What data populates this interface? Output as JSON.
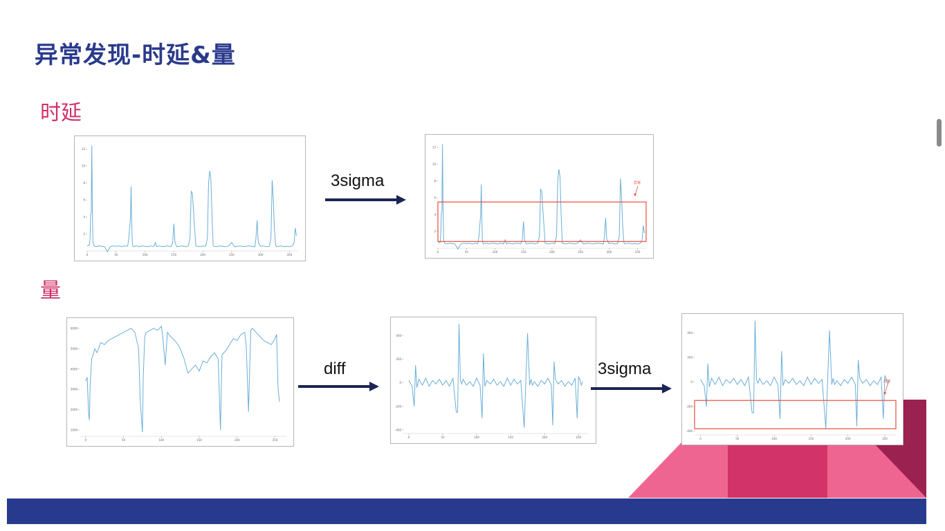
{
  "title": "异常发现-时延&量",
  "sections": {
    "latency": "时延",
    "volume": "量"
  },
  "arrows": {
    "a1": "3sigma",
    "a2": "diff",
    "a3": "3sigma"
  },
  "annotations": {
    "anomaly": "异常"
  },
  "colors": {
    "series": "#6aaed6",
    "box": "#e84c3d",
    "arrow": "#1c2553",
    "title": "#2a3a8c",
    "section": "#d0306a"
  },
  "chart_data": [
    {
      "id": "latency_raw",
      "type": "line",
      "xlim": [
        0,
        365
      ],
      "ylim": [
        0,
        13
      ],
      "xticks": [
        0,
        50,
        100,
        150,
        200,
        250,
        300,
        350
      ],
      "yticks": [
        2,
        4,
        6,
        8,
        10,
        12
      ],
      "x": [
        0,
        4,
        5,
        6,
        7,
        8,
        9,
        10,
        12,
        15,
        20,
        25,
        30,
        35,
        40,
        45,
        50,
        55,
        60,
        65,
        70,
        72,
        75,
        76,
        77,
        78,
        79,
        80,
        82,
        85,
        90,
        95,
        100,
        105,
        110,
        115,
        118,
        120,
        122,
        125,
        130,
        135,
        140,
        145,
        148,
        150,
        152,
        155,
        160,
        165,
        170,
        175,
        178,
        180,
        182,
        185,
        188,
        190,
        195,
        200,
        205,
        208,
        210,
        212,
        214,
        216,
        218,
        220,
        225,
        230,
        235,
        240,
        245,
        250,
        255,
        260,
        265,
        270,
        275,
        280,
        285,
        290,
        292,
        294,
        296,
        300,
        305,
        310,
        315,
        318,
        320,
        322,
        324,
        326,
        328,
        330,
        335,
        340,
        345,
        350,
        355,
        358,
        360,
        362
      ],
      "y": [
        0.6,
        0.7,
        1.5,
        4.2,
        4.5,
        12.4,
        5.0,
        1.0,
        0.6,
        0.5,
        0.6,
        0.55,
        0.5,
        -0.1,
        0.5,
        0.6,
        0.55,
        0.6,
        0.5,
        0.6,
        0.55,
        1.5,
        4.0,
        7.6,
        3.5,
        1.0,
        0.6,
        0.5,
        0.55,
        0.6,
        0.5,
        0.6,
        0.55,
        0.5,
        0.6,
        0.5,
        1.0,
        0.5,
        0.55,
        0.6,
        0.5,
        0.55,
        0.6,
        0.5,
        1.0,
        3.2,
        1.0,
        0.5,
        0.55,
        0.6,
        0.5,
        0.6,
        1.5,
        7.0,
        6.8,
        3.5,
        0.6,
        0.55,
        0.5,
        0.6,
        0.55,
        1.5,
        8.0,
        9.4,
        8.5,
        4.0,
        0.6,
        0.55,
        0.5,
        0.6,
        0.55,
        0.5,
        0.6,
        1.0,
        0.5,
        0.55,
        0.6,
        0.5,
        0.55,
        0.6,
        0.55,
        0.5,
        1.5,
        3.6,
        1.0,
        0.55,
        0.6,
        0.5,
        0.55,
        1.5,
        8.3,
        6.0,
        2.5,
        0.7,
        0.5,
        0.55,
        0.6,
        0.5,
        0.55,
        0.5,
        0.6,
        1.0,
        2.7,
        1.8
      ]
    },
    {
      "id": "latency_sigma",
      "type": "line",
      "xlim": [
        0,
        365
      ],
      "ylim": [
        0,
        13
      ],
      "xticks": [
        0,
        50,
        100,
        150,
        200,
        250,
        300,
        350
      ],
      "yticks": [
        2,
        4,
        6,
        8,
        10,
        12
      ],
      "threshold_box": {
        "x0": 0,
        "x1": 365,
        "y0": 0.8,
        "y1": 5.5
      },
      "x": [
        0,
        4,
        5,
        6,
        7,
        8,
        9,
        10,
        12,
        15,
        20,
        25,
        30,
        35,
        40,
        45,
        50,
        55,
        60,
        65,
        70,
        72,
        75,
        76,
        77,
        78,
        79,
        80,
        82,
        85,
        90,
        95,
        100,
        105,
        110,
        115,
        118,
        120,
        122,
        125,
        130,
        135,
        140,
        145,
        148,
        150,
        152,
        155,
        160,
        165,
        170,
        175,
        178,
        180,
        182,
        185,
        188,
        190,
        195,
        200,
        205,
        208,
        210,
        212,
        214,
        216,
        218,
        220,
        225,
        230,
        235,
        240,
        245,
        250,
        255,
        260,
        265,
        270,
        275,
        280,
        285,
        290,
        292,
        294,
        296,
        300,
        305,
        310,
        315,
        318,
        320,
        322,
        324,
        326,
        328,
        330,
        335,
        340,
        345,
        350,
        355,
        358,
        360,
        362
      ],
      "y": [
        0.6,
        0.7,
        1.5,
        4.2,
        4.5,
        12.4,
        5.0,
        1.0,
        0.6,
        0.5,
        0.6,
        0.55,
        0.5,
        -0.1,
        0.5,
        0.6,
        0.55,
        0.6,
        0.5,
        0.6,
        0.55,
        1.5,
        4.0,
        7.6,
        3.5,
        1.0,
        0.6,
        0.5,
        0.55,
        0.6,
        0.5,
        0.6,
        0.55,
        0.5,
        0.6,
        0.5,
        1.0,
        0.5,
        0.55,
        0.6,
        0.5,
        0.55,
        0.6,
        0.5,
        1.0,
        3.2,
        1.0,
        0.5,
        0.55,
        0.6,
        0.5,
        0.6,
        1.5,
        7.0,
        6.8,
        3.5,
        0.6,
        0.55,
        0.5,
        0.6,
        0.55,
        1.5,
        8.0,
        9.4,
        8.5,
        4.0,
        0.6,
        0.55,
        0.5,
        0.6,
        0.55,
        0.5,
        0.6,
        1.0,
        0.5,
        0.55,
        0.6,
        0.5,
        0.55,
        0.6,
        0.55,
        0.5,
        1.5,
        3.6,
        1.0,
        0.55,
        0.6,
        0.5,
        0.55,
        1.5,
        8.3,
        6.0,
        2.5,
        0.7,
        0.5,
        0.55,
        0.6,
        0.5,
        0.55,
        0.5,
        0.6,
        1.0,
        2.7,
        1.8
      ]
    },
    {
      "id": "volume_raw",
      "type": "line",
      "xlim": [
        -8,
        265
      ],
      "ylim": [
        700,
        6300
      ],
      "xticks": [
        0,
        50,
        100,
        150,
        200,
        250
      ],
      "yticks": [
        1000,
        2000,
        3000,
        4000,
        5000,
        6000
      ],
      "x": [
        0,
        2,
        4,
        5,
        6,
        8,
        10,
        12,
        15,
        18,
        20,
        25,
        30,
        35,
        40,
        45,
        50,
        55,
        60,
        65,
        70,
        72,
        75,
        76,
        78,
        80,
        85,
        90,
        95,
        100,
        102,
        105,
        108,
        110,
        112,
        115,
        120,
        125,
        130,
        135,
        140,
        145,
        150,
        155,
        160,
        165,
        170,
        175,
        178,
        180,
        185,
        190,
        195,
        200,
        205,
        210,
        212,
        215,
        218,
        220,
        225,
        230,
        235,
        240,
        245,
        250,
        252,
        254,
        256
      ],
      "y": [
        3400,
        3600,
        1800,
        1500,
        3200,
        4500,
        4700,
        5000,
        4800,
        5100,
        5300,
        5200,
        5400,
        5500,
        5600,
        5700,
        5800,
        5900,
        6000,
        5800,
        5000,
        2500,
        900,
        3500,
        5600,
        5800,
        5900,
        6000,
        5900,
        6100,
        5500,
        4200,
        5800,
        5700,
        5600,
        5500,
        5300,
        5000,
        4500,
        3800,
        4000,
        4200,
        3900,
        4400,
        4300,
        4600,
        4800,
        4500,
        1000,
        4700,
        4900,
        5200,
        5500,
        5400,
        5700,
        5800,
        5100,
        1900,
        5900,
        6000,
        5800,
        5600,
        5400,
        5300,
        5200,
        5500,
        5700,
        3000,
        2400
      ]
    },
    {
      "id": "volume_diff",
      "type": "line",
      "xlim": [
        -8,
        265
      ],
      "ylim": [
        -430,
        520
      ],
      "xticks": [
        0,
        50,
        100,
        150,
        200,
        250
      ],
      "yticks": [
        -400,
        -200,
        0,
        200,
        400
      ],
      "x": [
        0,
        5,
        8,
        10,
        12,
        15,
        20,
        25,
        30,
        35,
        40,
        45,
        50,
        55,
        60,
        65,
        70,
        72,
        74,
        76,
        78,
        80,
        85,
        90,
        95,
        100,
        105,
        108,
        110,
        112,
        115,
        120,
        125,
        130,
        135,
        140,
        145,
        150,
        155,
        160,
        165,
        170,
        175,
        178,
        180,
        182,
        185,
        190,
        195,
        200,
        205,
        210,
        212,
        214,
        216,
        220,
        225,
        230,
        235,
        240,
        245,
        248,
        250,
        252,
        254,
        256
      ],
      "y": [
        20,
        -30,
        -200,
        150,
        -40,
        30,
        -20,
        40,
        -30,
        20,
        -10,
        30,
        -20,
        20,
        -30,
        40,
        -250,
        -250,
        500,
        20,
        -10,
        30,
        -20,
        10,
        -30,
        40,
        -20,
        -300,
        250,
        -30,
        20,
        -10,
        30,
        -20,
        10,
        -30,
        40,
        -20,
        30,
        -10,
        20,
        -380,
        420,
        -20,
        30,
        -20,
        10,
        -30,
        20,
        -10,
        40,
        -20,
        -360,
        180,
        30,
        -10,
        20,
        -30,
        10,
        -20,
        40,
        -300,
        50,
        30,
        -20,
        10
      ]
    },
    {
      "id": "volume_sigma",
      "type": "line",
      "xlim": [
        -8,
        265
      ],
      "ylim": [
        -430,
        520
      ],
      "xticks": [
        0,
        50,
        100,
        150,
        200,
        250
      ],
      "yticks": [
        -400,
        -200,
        0,
        200,
        400
      ],
      "threshold_box": {
        "x0": -8,
        "x1": 265,
        "y0": -380,
        "y1": -150
      },
      "x": [
        0,
        5,
        8,
        10,
        12,
        15,
        20,
        25,
        30,
        35,
        40,
        45,
        50,
        55,
        60,
        65,
        70,
        72,
        74,
        76,
        78,
        80,
        85,
        90,
        95,
        100,
        105,
        108,
        110,
        112,
        115,
        120,
        125,
        130,
        135,
        140,
        145,
        150,
        155,
        160,
        165,
        170,
        175,
        178,
        180,
        182,
        185,
        190,
        195,
        200,
        205,
        210,
        212,
        214,
        216,
        220,
        225,
        230,
        235,
        240,
        245,
        248,
        250,
        252,
        254,
        256
      ],
      "y": [
        20,
        -30,
        -200,
        150,
        -40,
        30,
        -20,
        40,
        -30,
        20,
        -10,
        30,
        -20,
        20,
        -30,
        40,
        -250,
        -250,
        500,
        20,
        -10,
        30,
        -20,
        10,
        -30,
        40,
        -20,
        -300,
        250,
        -30,
        20,
        -10,
        30,
        -20,
        10,
        -30,
        40,
        -20,
        30,
        -10,
        20,
        -380,
        420,
        -20,
        30,
        -20,
        10,
        -30,
        20,
        -10,
        40,
        -20,
        -360,
        180,
        30,
        -10,
        20,
        -30,
        10,
        -20,
        40,
        -300,
        50,
        30,
        -20,
        10
      ]
    }
  ]
}
